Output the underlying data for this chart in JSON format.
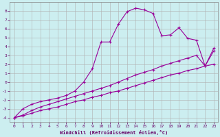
{
  "xlabel": "Windchill (Refroidissement éolien,°C)",
  "xlim": [
    -0.5,
    23.5
  ],
  "ylim": [
    -4.5,
    9.0
  ],
  "xticks": [
    0,
    1,
    2,
    3,
    4,
    5,
    6,
    7,
    8,
    9,
    10,
    11,
    12,
    13,
    14,
    15,
    16,
    17,
    18,
    19,
    20,
    21,
    22,
    23
  ],
  "yticks": [
    -4,
    -3,
    -2,
    -1,
    0,
    1,
    2,
    3,
    4,
    5,
    6,
    7,
    8
  ],
  "background_color": "#cceef0",
  "grid_color": "#b0b0b0",
  "line_color": "#990099",
  "c1_x": [
    0,
    1,
    2,
    3,
    4,
    5,
    6,
    7,
    8,
    9,
    10,
    11,
    12,
    13,
    14,
    15,
    16,
    17,
    18,
    19,
    20,
    21,
    22,
    23
  ],
  "c1_y": [
    -4.0,
    -3.8,
    -3.5,
    -3.2,
    -3.0,
    -2.8,
    -2.5,
    -2.2,
    -2.0,
    -1.7,
    -1.5,
    -1.2,
    -1.0,
    -0.7,
    -0.4,
    -0.1,
    0.2,
    0.5,
    0.8,
    1.0,
    1.3,
    1.5,
    1.8,
    2.0
  ],
  "c2_x": [
    0,
    1,
    2,
    3,
    4,
    5,
    6,
    7,
    8,
    9,
    10,
    11,
    12,
    13,
    14,
    15,
    16,
    17,
    18,
    19,
    20,
    21,
    22,
    23
  ],
  "c2_y": [
    -4.0,
    -3.7,
    -3.2,
    -2.8,
    -2.5,
    -2.2,
    -1.9,
    -1.6,
    -1.3,
    -1.0,
    -0.7,
    -0.4,
    0.0,
    0.4,
    0.8,
    1.1,
    1.4,
    1.8,
    2.1,
    2.4,
    2.7,
    3.0,
    1.8,
    3.5
  ],
  "c3_x": [
    0,
    1,
    2,
    3,
    4,
    5,
    6,
    7,
    8,
    9,
    10,
    11,
    12,
    13,
    14,
    15,
    16,
    17,
    18,
    19,
    20,
    21,
    22,
    23
  ],
  "c3_y": [
    -4.0,
    -3.0,
    -2.5,
    -2.2,
    -2.0,
    -1.8,
    -1.5,
    -1.0,
    0.0,
    1.5,
    4.5,
    4.5,
    6.5,
    7.9,
    8.3,
    8.1,
    7.7,
    5.2,
    5.3,
    6.1,
    4.9,
    4.7,
    1.8,
    3.8
  ]
}
